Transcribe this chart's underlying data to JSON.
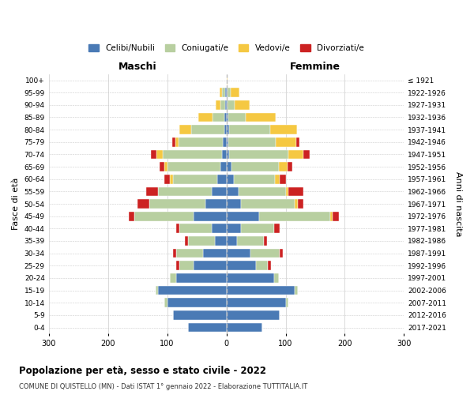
{
  "age_groups": [
    "0-4",
    "5-9",
    "10-14",
    "15-19",
    "20-24",
    "25-29",
    "30-34",
    "35-39",
    "40-44",
    "45-49",
    "50-54",
    "55-59",
    "60-64",
    "65-69",
    "70-74",
    "75-79",
    "80-84",
    "85-89",
    "90-94",
    "95-99",
    "100+"
  ],
  "birth_years": [
    "2017-2021",
    "2012-2016",
    "2007-2011",
    "2002-2006",
    "1997-2001",
    "1992-1996",
    "1987-1991",
    "1982-1986",
    "1977-1981",
    "1972-1976",
    "1967-1971",
    "1962-1966",
    "1957-1961",
    "1952-1956",
    "1947-1951",
    "1942-1946",
    "1937-1941",
    "1932-1936",
    "1927-1931",
    "1922-1926",
    "≤ 1921"
  ],
  "maschi_celibi": [
    65,
    90,
    100,
    115,
    85,
    55,
    40,
    20,
    25,
    55,
    35,
    25,
    15,
    10,
    8,
    6,
    4,
    3,
    2,
    2,
    0
  ],
  "maschi_coniugati": [
    0,
    0,
    5,
    5,
    10,
    25,
    45,
    45,
    55,
    100,
    95,
    90,
    75,
    90,
    100,
    75,
    55,
    20,
    8,
    5,
    0
  ],
  "maschi_vedovi": [
    0,
    0,
    0,
    0,
    0,
    0,
    0,
    0,
    0,
    0,
    0,
    0,
    5,
    5,
    10,
    5,
    20,
    25,
    8,
    5,
    0
  ],
  "maschi_divorziati": [
    0,
    0,
    0,
    0,
    0,
    5,
    5,
    5,
    5,
    10,
    20,
    20,
    10,
    8,
    10,
    5,
    0,
    0,
    0,
    0,
    0
  ],
  "femmine_celibi": [
    60,
    90,
    100,
    115,
    80,
    50,
    40,
    18,
    25,
    55,
    25,
    20,
    12,
    8,
    5,
    3,
    4,
    3,
    2,
    2,
    0
  ],
  "femmine_coniugati": [
    0,
    0,
    5,
    5,
    8,
    20,
    50,
    45,
    55,
    120,
    90,
    80,
    70,
    80,
    100,
    80,
    70,
    30,
    12,
    5,
    0
  ],
  "femmine_vedovi": [
    0,
    0,
    0,
    0,
    0,
    0,
    0,
    0,
    0,
    5,
    5,
    5,
    8,
    15,
    25,
    35,
    45,
    50,
    25,
    15,
    2
  ],
  "femmine_divorziati": [
    0,
    0,
    0,
    0,
    0,
    5,
    5,
    5,
    10,
    10,
    10,
    25,
    10,
    8,
    10,
    5,
    0,
    0,
    0,
    0,
    0
  ],
  "color_celibi": "#4a7ab5",
  "color_coniugati": "#b8cfa0",
  "color_vedovi": "#f5c842",
  "color_divorziati": "#cc2222",
  "xlim": 300,
  "title_main": "Popolazione per età, sesso e stato civile - 2022",
  "title_sub": "COMUNE DI QUISTELLO (MN) - Dati ISTAT 1° gennaio 2022 - Elaborazione TUTTITALIA.IT",
  "label_maschi": "Maschi",
  "label_femmine": "Femmine",
  "ylabel_left": "Fasce di età",
  "ylabel_right": "Anni di nascita",
  "legend_labels": [
    "Celibi/Nubili",
    "Coniugati/e",
    "Vedovi/e",
    "Divorziati/e"
  ],
  "bg_color": "#ffffff",
  "grid_color": "#cccccc"
}
